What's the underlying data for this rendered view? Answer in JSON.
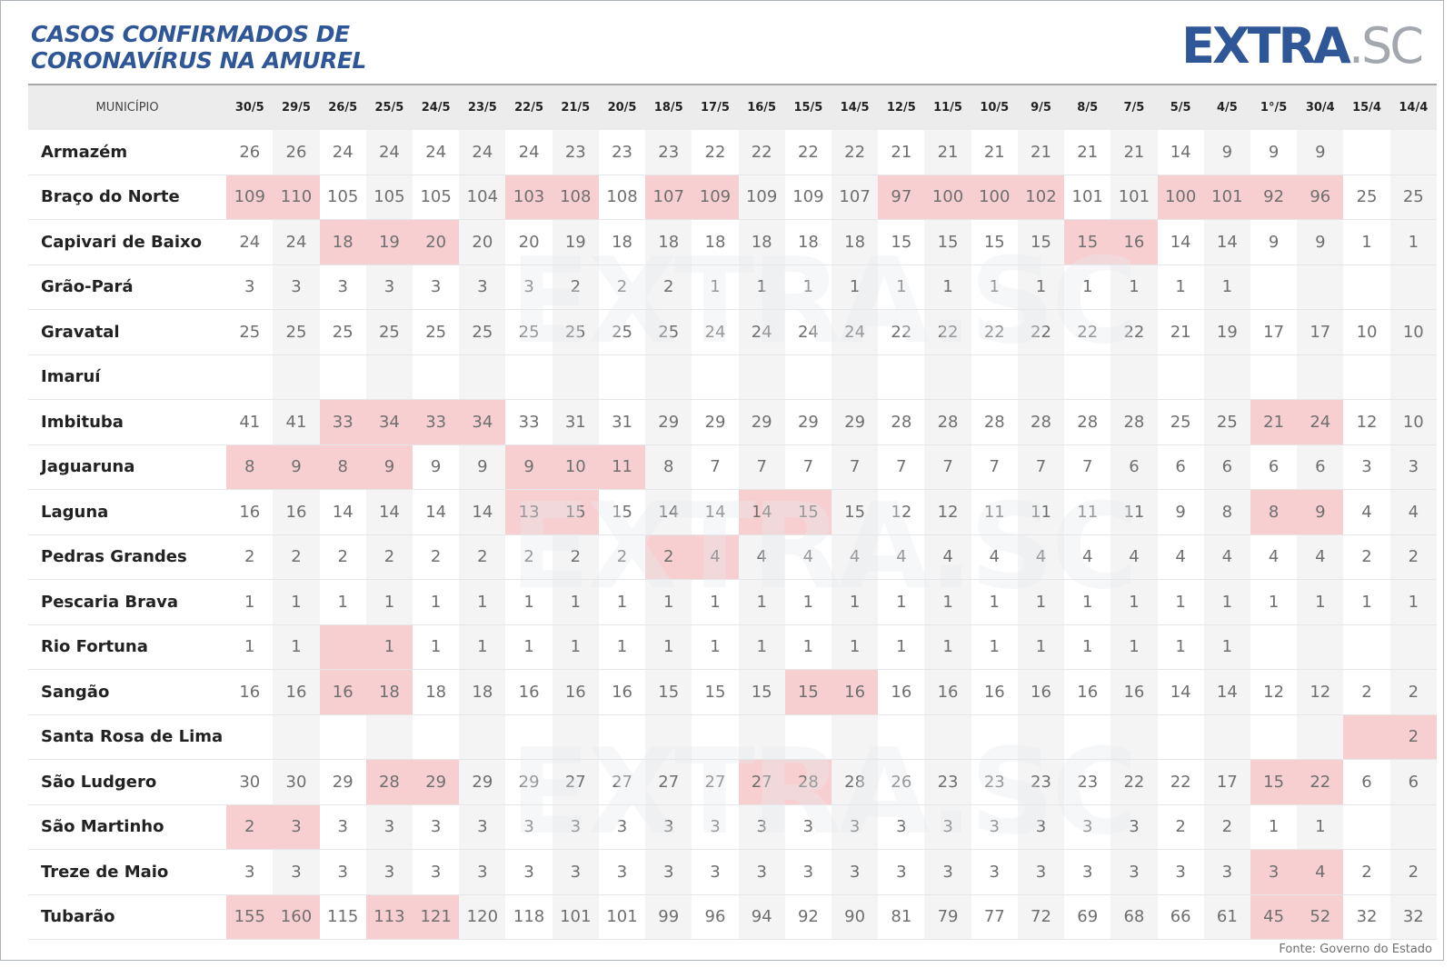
{
  "title": {
    "line1": "CASOS CONFIRMADOS DE",
    "line2": "CORONAVÍRUS NA AMUREL"
  },
  "logo": {
    "main": "EXTRA",
    "sub": ".SC"
  },
  "watermark": "EXTRA.SC",
  "table": {
    "header_label": "MUNICÍPIO",
    "dates": [
      "30/5",
      "29/5",
      "26/5",
      "25/5",
      "24/5",
      "23/5",
      "22/5",
      "21/5",
      "20/5",
      "18/5",
      "17/5",
      "16/5",
      "15/5",
      "14/5",
      "12/5",
      "11/5",
      "10/5",
      "9/5",
      "8/5",
      "7/5",
      "5/5",
      "4/5",
      "1°/5",
      "30/4",
      "15/4",
      "14/4"
    ],
    "rows": [
      {
        "name": "Armazém",
        "values": [
          "26",
          "26",
          "24",
          "24",
          "24",
          "24",
          "24",
          "23",
          "23",
          "23",
          "22",
          "22",
          "22",
          "22",
          "21",
          "21",
          "21",
          "21",
          "21",
          "21",
          "14",
          "9",
          "9",
          "9",
          "",
          ""
        ],
        "highlight": []
      },
      {
        "name": "Braço do Norte",
        "values": [
          "109",
          "110",
          "105",
          "105",
          "105",
          "104",
          "103",
          "108",
          "108",
          "107",
          "109",
          "109",
          "109",
          "107",
          "97",
          "100",
          "100",
          "102",
          "101",
          "101",
          "100",
          "101",
          "92",
          "96",
          "25",
          "25"
        ],
        "highlight": [
          0,
          1,
          6,
          7,
          9,
          10,
          14,
          15,
          16,
          17,
          20,
          21,
          22,
          23
        ]
      },
      {
        "name": "Capivari de Baixo",
        "values": [
          "24",
          "24",
          "18",
          "19",
          "20",
          "20",
          "20",
          "19",
          "18",
          "18",
          "18",
          "18",
          "18",
          "18",
          "15",
          "15",
          "15",
          "15",
          "15",
          "16",
          "14",
          "14",
          "9",
          "9",
          "1",
          "1"
        ],
        "highlight": [
          2,
          3,
          4,
          18,
          19
        ]
      },
      {
        "name": "Grão-Pará",
        "values": [
          "3",
          "3",
          "3",
          "3",
          "3",
          "3",
          "3",
          "2",
          "2",
          "2",
          "1",
          "1",
          "1",
          "1",
          "1",
          "1",
          "1",
          "1",
          "1",
          "1",
          "1",
          "1",
          "",
          "",
          "",
          ""
        ],
        "highlight": []
      },
      {
        "name": "Gravatal",
        "values": [
          "25",
          "25",
          "25",
          "25",
          "25",
          "25",
          "25",
          "25",
          "25",
          "25",
          "24",
          "24",
          "24",
          "24",
          "22",
          "22",
          "22",
          "22",
          "22",
          "22",
          "21",
          "19",
          "17",
          "17",
          "10",
          "10"
        ],
        "highlight": []
      },
      {
        "name": "Imaruí",
        "values": [
          "",
          "",
          "",
          "",
          "",
          "",
          "",
          "",
          "",
          "",
          "",
          "",
          "",
          "",
          "",
          "",
          "",
          "",
          "",
          "",
          "",
          "",
          "",
          "",
          "",
          ""
        ],
        "highlight": []
      },
      {
        "name": "Imbituba",
        "values": [
          "41",
          "41",
          "33",
          "34",
          "33",
          "34",
          "33",
          "31",
          "31",
          "29",
          "29",
          "29",
          "29",
          "29",
          "28",
          "28",
          "28",
          "28",
          "28",
          "28",
          "25",
          "25",
          "21",
          "24",
          "12",
          "10"
        ],
        "highlight": [
          2,
          3,
          4,
          5,
          22,
          23
        ]
      },
      {
        "name": "Jaguaruna",
        "values": [
          "8",
          "9",
          "8",
          "9",
          "9",
          "9",
          "9",
          "10",
          "11",
          "8",
          "7",
          "7",
          "7",
          "7",
          "7",
          "7",
          "7",
          "7",
          "7",
          "6",
          "6",
          "6",
          "6",
          "6",
          "3",
          "3"
        ],
        "highlight": [
          0,
          1,
          2,
          3,
          6,
          7,
          8
        ]
      },
      {
        "name": "Laguna",
        "values": [
          "16",
          "16",
          "14",
          "14",
          "14",
          "14",
          "13",
          "15",
          "15",
          "14",
          "14",
          "14",
          "15",
          "15",
          "12",
          "12",
          "11",
          "11",
          "11",
          "11",
          "9",
          "8",
          "8",
          "9",
          "4",
          "4"
        ],
        "highlight": [
          6,
          7,
          11,
          12,
          22,
          23
        ]
      },
      {
        "name": "Pedras Grandes",
        "values": [
          "2",
          "2",
          "2",
          "2",
          "2",
          "2",
          "2",
          "2",
          "2",
          "2",
          "4",
          "4",
          "4",
          "4",
          "4",
          "4",
          "4",
          "4",
          "4",
          "4",
          "4",
          "4",
          "4",
          "4",
          "2",
          "2"
        ],
        "highlight": [
          9,
          10
        ]
      },
      {
        "name": "Pescaria Brava",
        "values": [
          "1",
          "1",
          "1",
          "1",
          "1",
          "1",
          "1",
          "1",
          "1",
          "1",
          "1",
          "1",
          "1",
          "1",
          "1",
          "1",
          "1",
          "1",
          "1",
          "1",
          "1",
          "1",
          "1",
          "1",
          "1",
          "1"
        ],
        "highlight": []
      },
      {
        "name": "Rio Fortuna",
        "values": [
          "1",
          "1",
          "",
          "1",
          "1",
          "1",
          "1",
          "1",
          "1",
          "1",
          "1",
          "1",
          "1",
          "1",
          "1",
          "1",
          "1",
          "1",
          "1",
          "1",
          "1",
          "1",
          "",
          "",
          "",
          ""
        ],
        "highlight": [
          2,
          3
        ]
      },
      {
        "name": "Sangão",
        "values": [
          "16",
          "16",
          "16",
          "18",
          "18",
          "18",
          "16",
          "16",
          "16",
          "15",
          "15",
          "15",
          "15",
          "16",
          "16",
          "16",
          "16",
          "16",
          "16",
          "16",
          "14",
          "14",
          "12",
          "12",
          "2",
          "2"
        ],
        "highlight": [
          2,
          3,
          12,
          13
        ]
      },
      {
        "name": "Santa Rosa de Lima",
        "values": [
          "",
          "",
          "",
          "",
          "",
          "",
          "",
          "",
          "",
          "",
          "",
          "",
          "",
          "",
          "",
          "",
          "",
          "",
          "",
          "",
          "",
          "",
          "",
          "",
          "",
          "2"
        ],
        "highlight": [
          24,
          25
        ]
      },
      {
        "name": "São Ludgero",
        "values": [
          "30",
          "30",
          "29",
          "28",
          "29",
          "29",
          "29",
          "27",
          "27",
          "27",
          "27",
          "27",
          "28",
          "28",
          "26",
          "23",
          "23",
          "23",
          "23",
          "22",
          "22",
          "17",
          "15",
          "22",
          "6",
          "6"
        ],
        "highlight": [
          3,
          4,
          11,
          12,
          22,
          23
        ]
      },
      {
        "name": "São Martinho",
        "values": [
          "2",
          "3",
          "3",
          "3",
          "3",
          "3",
          "3",
          "3",
          "3",
          "3",
          "3",
          "3",
          "3",
          "3",
          "3",
          "3",
          "3",
          "3",
          "3",
          "3",
          "2",
          "2",
          "1",
          "1",
          "",
          ""
        ],
        "highlight": [
          0,
          1
        ]
      },
      {
        "name": "Treze de Maio",
        "values": [
          "3",
          "3",
          "3",
          "3",
          "3",
          "3",
          "3",
          "3",
          "3",
          "3",
          "3",
          "3",
          "3",
          "3",
          "3",
          "3",
          "3",
          "3",
          "3",
          "3",
          "3",
          "3",
          "3",
          "4",
          "2",
          "2"
        ],
        "highlight": [
          22,
          23
        ]
      },
      {
        "name": "Tubarão",
        "values": [
          "155",
          "160",
          "115",
          "113",
          "121",
          "120",
          "118",
          "101",
          "101",
          "99",
          "96",
          "94",
          "92",
          "90",
          "81",
          "79",
          "77",
          "72",
          "69",
          "68",
          "66",
          "61",
          "45",
          "52",
          "32",
          "32"
        ],
        "highlight": [
          0,
          1,
          3,
          4,
          22,
          23
        ]
      }
    ]
  },
  "source": "Fonte: Governo do Estado",
  "colors": {
    "title": "#2f5696",
    "highlight": "#f8cfd1",
    "alt_column": "#f4f4f5",
    "header_bg": "#ececec",
    "logo_gray": "#a3a8ae"
  }
}
